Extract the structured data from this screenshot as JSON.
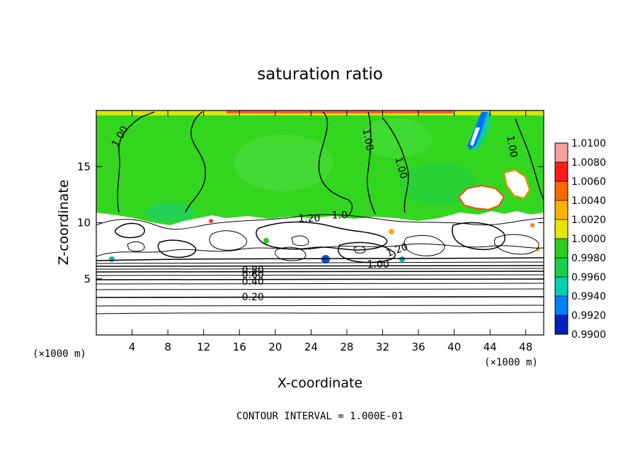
{
  "chart_data": {
    "type": "heatmap",
    "title": "saturation ratio",
    "xlabel": "X-coordinate",
    "ylabel": "Z-coordinate",
    "x_unit": "(×1000 m)",
    "z_unit": "(×1000 m)",
    "xlim": [
      0,
      50
    ],
    "ylim": [
      0,
      20
    ],
    "x_ticks": [
      4,
      8,
      12,
      16,
      20,
      24,
      28,
      32,
      36,
      40,
      44,
      48
    ],
    "y_ticks": [
      5,
      10,
      15
    ],
    "footer": "CONTOUR INTERVAL = 1.000E-01",
    "colorbar": {
      "levels": [
        1.01,
        1.008,
        1.006,
        1.004,
        1.002,
        1.0,
        0.998,
        0.996,
        0.994,
        0.992,
        0.99
      ],
      "labels": [
        "1.0100",
        "1.0080",
        "1.0060",
        "1.0040",
        "1.0020",
        "1.0000",
        "0.9980",
        "0.9960",
        "0.9940",
        "0.9920",
        "0.9900"
      ],
      "colors": [
        "#f4a0a0",
        "#ff1a1a",
        "#ff6a00",
        "#ffb000",
        "#e6e600",
        "#2ecc20",
        "#14d24a",
        "#00d0b0",
        "#0080ff",
        "#0020c0",
        "#600090"
      ]
    },
    "contour_labels": [
      {
        "text": "1.00",
        "x": 2.6,
        "z": 17.7,
        "angle": -60
      },
      {
        "text": "1.00",
        "x": 30.4,
        "z": 17.4,
        "angle": 80
      },
      {
        "text": "1.00",
        "x": 34.1,
        "z": 14.9,
        "angle": 75
      },
      {
        "text": "1.00",
        "x": 46.5,
        "z": 16.8,
        "angle": 80
      },
      {
        "text": "1.20",
        "x": 23.8,
        "z": 10.4,
        "angle": 0
      },
      {
        "text": "1.0",
        "x": 27.2,
        "z": 10.7,
        "angle": 0
      },
      {
        "text": "1.20",
        "x": 33.6,
        "z": 7.6,
        "angle": -20
      },
      {
        "text": "1.00",
        "x": 31.5,
        "z": 6.3,
        "angle": 0
      },
      {
        "text": "0.80",
        "x": 17.5,
        "z": 5.8,
        "angle": 0
      },
      {
        "text": "0.60",
        "x": 17.5,
        "z": 5.4,
        "angle": 0
      },
      {
        "text": "0.40",
        "x": 17.5,
        "z": 4.8,
        "angle": 0
      },
      {
        "text": "0.20",
        "x": 17.5,
        "z": 3.4,
        "angle": 0
      }
    ]
  }
}
